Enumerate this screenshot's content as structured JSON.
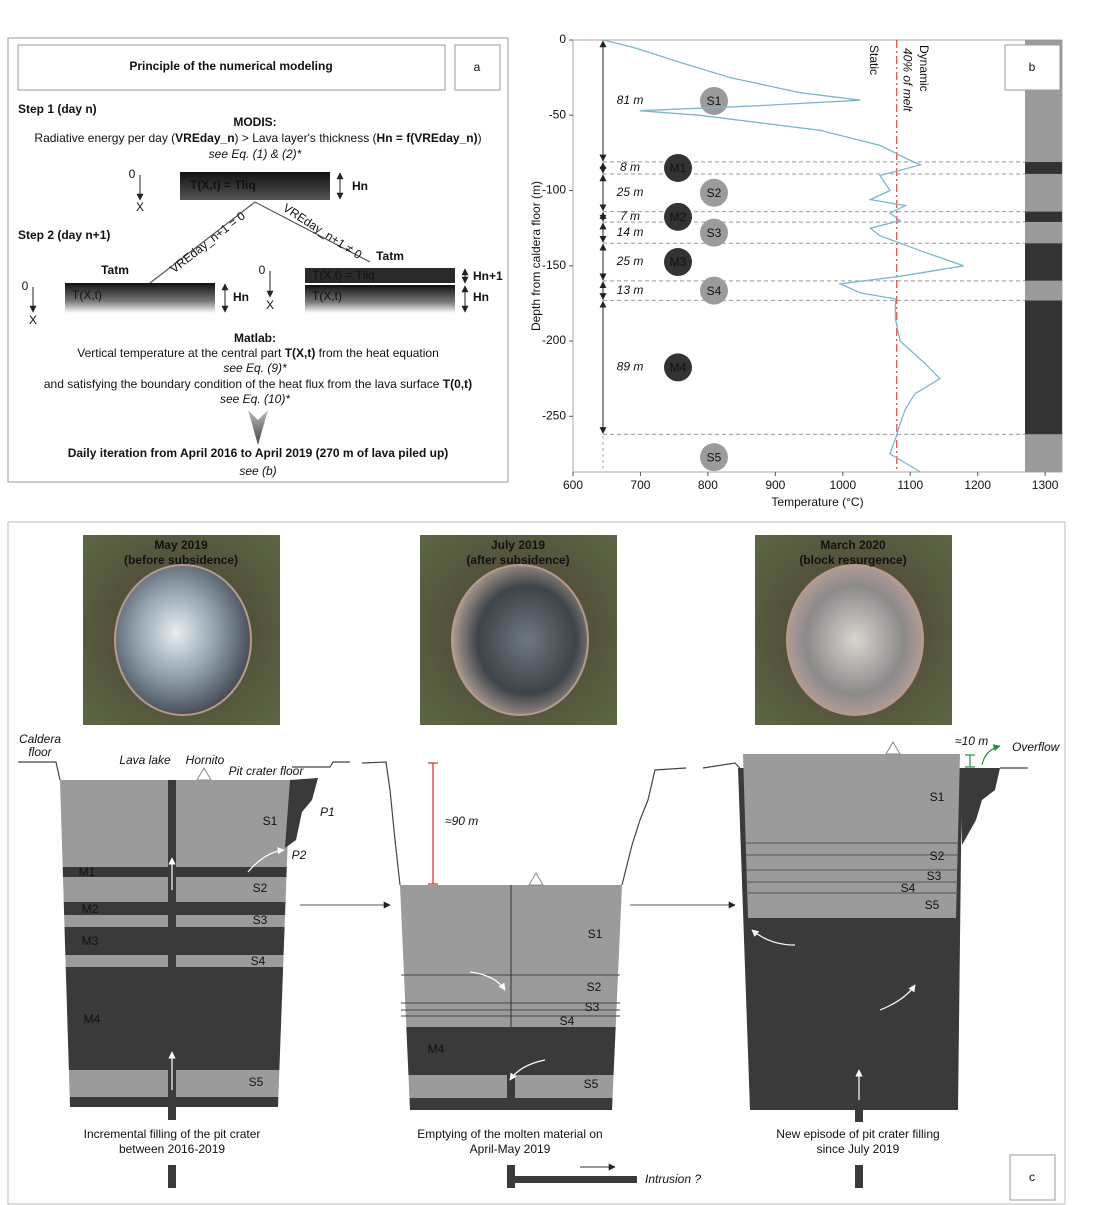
{
  "panel_a": {
    "letter": "a",
    "title": "Principle of the numerical modeling",
    "step1": "Step 1 (day n)",
    "modis_heading": "MODIS:",
    "modis_text": [
      "Radiative energy per day (",
      "VREday_n",
      ") > Lava layer's thickness (",
      "Hn = f(VREday_n)",
      ")"
    ],
    "modis_ref": "see Eq. (1) & (2)*",
    "layer_n": {
      "origin": "0",
      "depth_axis": "X",
      "label": "T(X,t) = Tliq",
      "thickness": "Hn"
    },
    "step2": "Step 2 (day n+1)",
    "branch_zero": "VREday_n+1 = 0",
    "branch_nonzero": "VREday_n+1 ≠ 0",
    "left": {
      "top": "Tatm",
      "origin": "0",
      "depth_axis": "X",
      "label": "T(X,t)",
      "thickness": "Hn"
    },
    "right": {
      "top": "Tatm",
      "origin": "0",
      "depth_axis": "X",
      "new_label": "T(X,t) = Tliq",
      "old_label": "T(X,t)",
      "new_thickness": "Hn+1",
      "old_thickness": "Hn"
    },
    "matlab_heading": "Matlab:",
    "matlab_text1": [
      "Vertical temperature at the central part ",
      "T(X,t)",
      " from the heat equation"
    ],
    "matlab_ref1": "see Eq. (9)*",
    "matlab_text2": [
      "and satisfying the boundary condition of the heat flux from the lava surface ",
      "T(0,t)"
    ],
    "matlab_ref2": "see Eq. (10)*",
    "conclusion": "Daily iteration from April 2016 to April 2019 (270 m of lava piled up)",
    "conclusion_ref": "see (b)"
  },
  "chart_data": {
    "type": "line",
    "letter": "b",
    "xlabel": "Temperature (°C)",
    "ylabel": "Depth from caldera floor (m)",
    "xlim": [
      600,
      1325
    ],
    "ylim": [
      -287,
      0
    ],
    "xticks": [
      600,
      700,
      800,
      900,
      1000,
      1100,
      1200,
      1300
    ],
    "yticks": [
      -250,
      -200,
      -150,
      -100,
      -50,
      0
    ],
    "color": "#7db7c9",
    "x": [
      645,
      690,
      760,
      833,
      937,
      1026,
      860,
      699,
      788,
      966,
      1055,
      1100,
      1115,
      1055,
      1070,
      1041,
      1093,
      1070,
      1085,
      1041,
      1055,
      1115,
      1179,
      1085,
      996,
      1026,
      1078,
      1078,
      1085,
      1122,
      1144,
      1107,
      1093,
      1085,
      1078,
      1070,
      1115
    ],
    "values": [
      0,
      -5,
      -15,
      -25,
      -35,
      -40,
      -44,
      -47,
      -50,
      -60,
      -70,
      -80,
      -83,
      -90,
      -100,
      -106,
      -110,
      -115,
      -120,
      -125,
      -130,
      -140,
      -150,
      -157,
      -162,
      -168,
      -172,
      -185,
      -200,
      -215,
      -225,
      -235,
      -245,
      -255,
      -265,
      -275,
      -287
    ],
    "static_label": "Static",
    "dynamic_label": "Dynamic",
    "melt": {
      "label": "40% of melt",
      "x": 1080,
      "color": "#d9534f"
    },
    "layer_colors": {
      "S": "#9b9b9b",
      "M": "#333333"
    },
    "layers": [
      {
        "name": "S1",
        "thickness": 81,
        "thickness_label": "81 m"
      },
      {
        "name": "M1",
        "thickness": 8,
        "thickness_label": "8 m"
      },
      {
        "name": "S2",
        "thickness": 25,
        "thickness_label": "25 m"
      },
      {
        "name": "M2",
        "thickness": 7,
        "thickness_label": "7 m"
      },
      {
        "name": "S3",
        "thickness": 14,
        "thickness_label": "14 m"
      },
      {
        "name": "M3",
        "thickness": 25,
        "thickness_label": "25 m"
      },
      {
        "name": "S4",
        "thickness": 13,
        "thickness_label": "13 m"
      },
      {
        "name": "M4",
        "thickness": 89,
        "thickness_label": "89 m"
      },
      {
        "name": "S5"
      }
    ]
  },
  "panel_c": {
    "letter": "c",
    "photos": [
      {
        "date": "May 2019",
        "note": "(before subsidence)"
      },
      {
        "date": "July 2019",
        "note": "(after subsidence)"
      },
      {
        "date": "March 2020",
        "note": "(block resurgence)"
      }
    ],
    "stage1": {
      "caldera_floor": [
        "Caldera",
        "floor"
      ],
      "lava_lake": "Lava lake",
      "hornito": "Hornito",
      "pit_crater_floor": "Pit crater floor",
      "p1": "P1",
      "p2": "P2",
      "units": [
        "S1",
        "M1",
        "S2",
        "M2",
        "S3",
        "M3",
        "S4",
        "M4",
        "S5"
      ],
      "caption": [
        "Incremental filling of the pit crater",
        "between 2016-2019"
      ]
    },
    "stage2": {
      "drop": "≈90 m",
      "units": [
        "S1",
        "S2",
        "S3",
        "S4",
        "M4",
        "S5"
      ],
      "caption": [
        "Emptying of the molten material on",
        "April-May 2019"
      ],
      "intrusion": "Intrusion ?"
    },
    "stage3": {
      "rise": "≈10 m",
      "overflow": "Overflow",
      "units": [
        "S1",
        "S2",
        "S3",
        "S4",
        "S5"
      ],
      "caption": [
        "New episode of pit crater filling",
        "since July 2019"
      ]
    }
  }
}
